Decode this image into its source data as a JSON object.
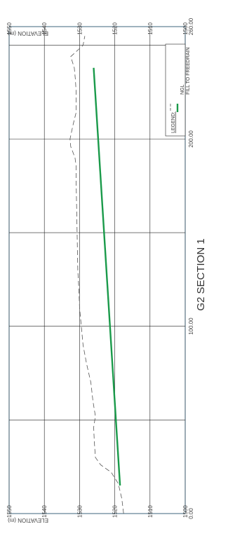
{
  "chart_data": {
    "type": "line",
    "title": "G2 SECTION 1",
    "xlabel": "",
    "ylabel": "ELEVATION (m)",
    "xlim": [
      0,
      260
    ],
    "ylim": [
      1500,
      1550
    ],
    "x_ticks": [
      {
        "value": 0,
        "label": "0.00"
      },
      {
        "value": 100,
        "label": "100.00"
      },
      {
        "value": 200,
        "label": "200.00"
      },
      {
        "value": 260,
        "label": "260.00"
      }
    ],
    "x_gridlines": [
      0,
      50,
      100,
      150,
      200,
      250,
      260
    ],
    "y_ticks": [
      1500,
      1510,
      1520,
      1530,
      1540,
      1550
    ],
    "grid": true,
    "legend": {
      "title": "LEGEND:",
      "position": "top-right",
      "entries": [
        "NGL",
        "FILL TO FREEDRAIN"
      ]
    },
    "series": [
      {
        "name": "NGL",
        "color": "#555555",
        "style": "dashed",
        "x": [
          0,
          8,
          16,
          22,
          26,
          30,
          38,
          46,
          52,
          60,
          70,
          80,
          90,
          100,
          110,
          120,
          130,
          140,
          150,
          160,
          170,
          180,
          186,
          190,
          196,
          200,
          208,
          214,
          220,
          226,
          232,
          238,
          244,
          250,
          255
        ],
        "y": [
          1517.5,
          1518.0,
          1519.0,
          1521.0,
          1524.0,
          1525.5,
          1525.8,
          1526.0,
          1525.5,
          1526.2,
          1526.8,
          1528.0,
          1529.0,
          1529.5,
          1530.0,
          1530.2,
          1530.5,
          1530.6,
          1530.7,
          1530.8,
          1530.9,
          1531.0,
          1531.0,
          1531.3,
          1532.5,
          1532.7,
          1531.8,
          1531.0,
          1531.0,
          1531.0,
          1531.2,
          1531.5,
          1532.5,
          1529.0,
          1528.5
        ]
      },
      {
        "name": "FILL TO FREEDRAIN",
        "color": "#1a9a4a",
        "style": "solid",
        "x": [
          15,
          238
        ],
        "y": [
          1518.5,
          1526.0
        ]
      }
    ]
  }
}
